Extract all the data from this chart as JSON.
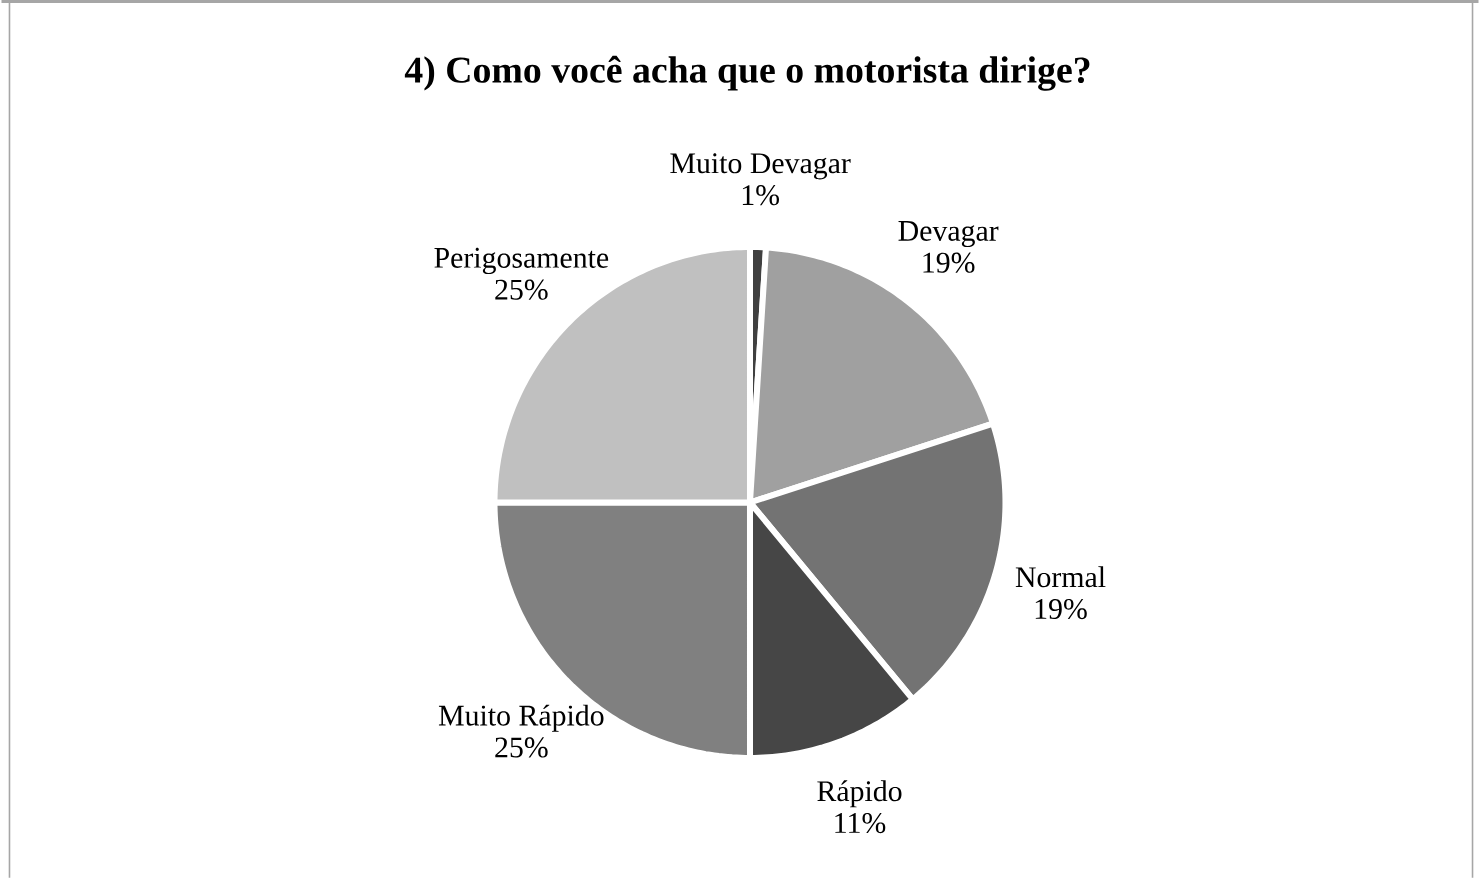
{
  "chart_data": {
    "type": "pie",
    "title": "4) Como você acha que o motorista dirige?",
    "categories": [
      "Muito Devagar",
      "Devagar",
      "Normal",
      "Rápido",
      "Muito Rápido",
      "Perigosamente"
    ],
    "values": [
      1,
      19,
      19,
      11,
      25,
      25
    ],
    "value_labels": [
      "1%",
      "19%",
      "19%",
      "11%",
      "25%",
      "25%"
    ],
    "colors": [
      "#404040",
      "#a0a0a0",
      "#737373",
      "#464646",
      "#808080",
      "#c0c0c0"
    ],
    "legend": false
  }
}
